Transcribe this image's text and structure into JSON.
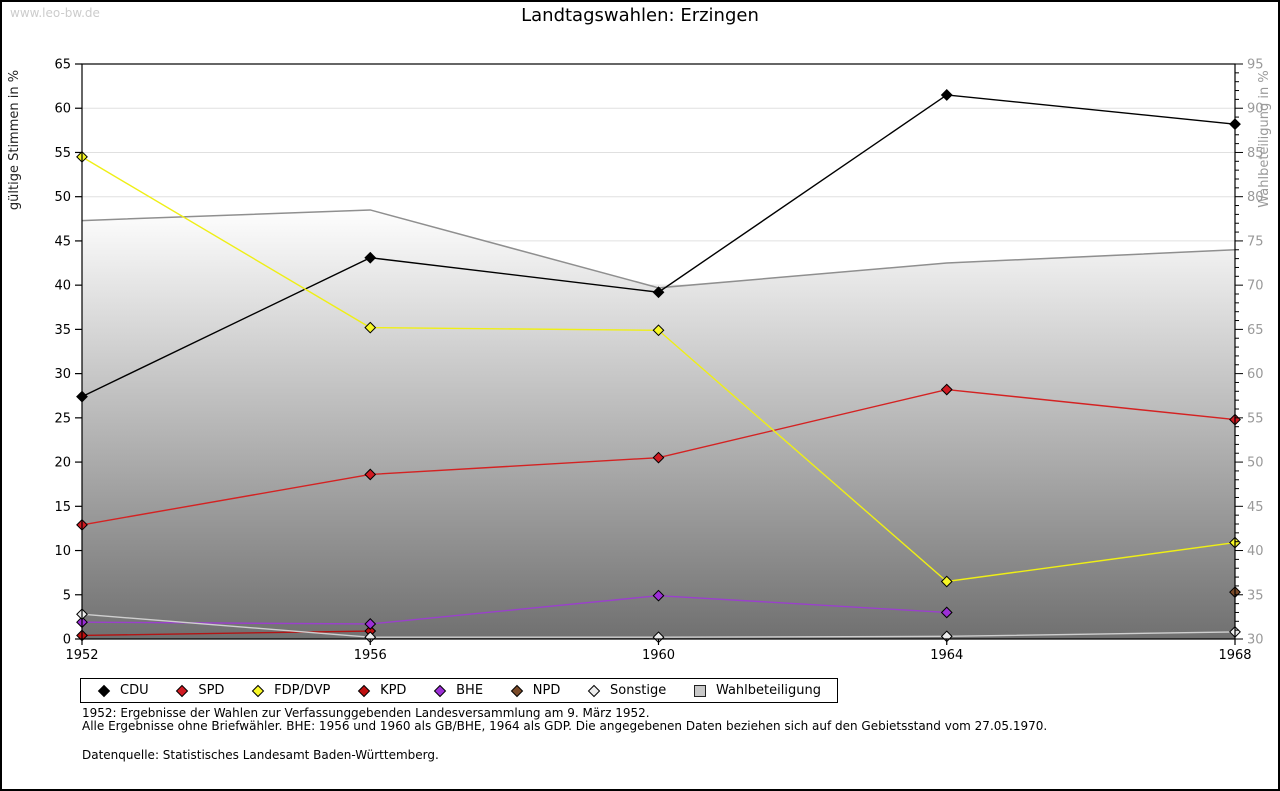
{
  "page": {
    "watermark": "www.leo-bw.de",
    "title": "Landtagswahlen: Erzingen",
    "notes": [
      "1952: Ergebnisse der Wahlen zur Verfassunggebenden Landesversammlung am 9. März 1952.",
      "Alle Ergebnisse ohne Briefwähler. BHE: 1956 und 1960 als GB/BHE, 1964 als GDP. Die angegebenen Daten beziehen sich auf den Gebietsstand vom 27.05.1970."
    ],
    "source": "Datenquelle: Statistisches Landesamt Baden-Württemberg."
  },
  "chart_data": {
    "type": "line",
    "title": "Landtagswahlen: Erzingen",
    "x": [
      1952,
      1956,
      1960,
      1964,
      1968
    ],
    "xticklabels": [
      "1952",
      "1956",
      "1960",
      "1964",
      "1968"
    ],
    "ylabel_left": "gültige Stimmen in %",
    "ylabel_right": "Wahlbeteiligung in %",
    "ylim_left": [
      0,
      65
    ],
    "ylim_right": [
      30,
      95
    ],
    "yticks_left": [
      0,
      5,
      10,
      15,
      20,
      25,
      30,
      35,
      40,
      45,
      50,
      55,
      60,
      65
    ],
    "yticks_right": [
      30,
      35,
      40,
      45,
      50,
      55,
      60,
      65,
      70,
      75,
      80,
      85,
      90,
      95
    ],
    "grid": true,
    "legend_position": "bottom",
    "colors": {
      "grid": "#e0e0e0",
      "frame": "#000000",
      "right_axis_text": "#999999",
      "left_axis_text": "#000000",
      "area_gradient_top": "#ffffff",
      "area_gradient_bottom": "#6f6f6f",
      "area_border": "#8f8f8f"
    },
    "series": [
      {
        "name": "CDU",
        "axis": "left",
        "color": "#000000",
        "marker_fill": "#000000",
        "values": [
          27.4,
          43.1,
          39.2,
          61.5,
          58.2
        ]
      },
      {
        "name": "SPD",
        "axis": "left",
        "color": "#d42222",
        "marker_fill": "#d01a22",
        "values": [
          12.9,
          18.6,
          20.5,
          28.2,
          24.8
        ]
      },
      {
        "name": "FDP/DVP",
        "axis": "left",
        "color": "#efef15",
        "marker_fill": "#f7f726",
        "values": [
          54.5,
          35.2,
          34.9,
          6.5,
          10.9
        ]
      },
      {
        "name": "KPD",
        "axis": "left",
        "color": "#b31414",
        "marker_fill": "#bd1010",
        "values": [
          0.4,
          0.9,
          null,
          null,
          null
        ]
      },
      {
        "name": "BHE",
        "axis": "left",
        "color": "#9a40cc",
        "marker_fill": "#9c2fd6",
        "values": [
          1.9,
          1.7,
          4.9,
          3.0,
          null
        ]
      },
      {
        "name": "NPD",
        "axis": "left",
        "color": "#7a4a28",
        "marker_fill": "#7a4a28",
        "values": [
          null,
          null,
          null,
          null,
          5.3
        ]
      },
      {
        "name": "Sonstige",
        "axis": "left",
        "color": "#cfcfcf",
        "marker_fill": "#ececec",
        "values": [
          2.8,
          0.2,
          0.2,
          0.3,
          0.8
        ]
      },
      {
        "name": "Wahlbeteiligung",
        "axis": "right",
        "type": "area",
        "color": "#8f8f8f",
        "marker_fill": "#c8c8c8",
        "values": [
          77.3,
          78.5,
          69.7,
          72.5,
          74.0
        ]
      }
    ]
  }
}
